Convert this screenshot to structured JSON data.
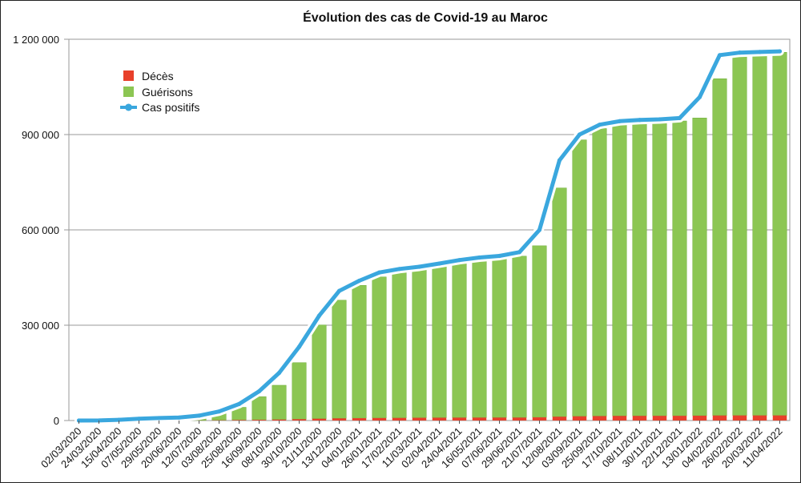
{
  "chart_data": {
    "type": "bar",
    "title": "Évolution des cas de Covid-19 au Maroc",
    "xlabel": "",
    "ylabel": "",
    "ylim": [
      0,
      1200000
    ],
    "grid": true,
    "legend_position": "top-left",
    "y_ticks": [
      0,
      300000,
      600000,
      900000,
      1200000
    ],
    "y_tick_labels": [
      "0",
      "300 000",
      "600 000",
      "900 000",
      "1 200 000"
    ],
    "categories": [
      "02/03/2020",
      "24/03/2020",
      "15/04/2020",
      "07/05/2020",
      "29/05/2020",
      "20/06/2020",
      "12/07/2020",
      "03/08/2020",
      "25/08/2020",
      "16/09/2020",
      "08/10/2020",
      "30/10/2020",
      "21/11/2020",
      "13/12/2020",
      "04/01/2021",
      "26/01/2021",
      "17/02/2021",
      "11/03/2021",
      "02/04/2021",
      "24/04/2021",
      "16/05/2021",
      "07/06/2021",
      "29/06/2021",
      "21/07/2021",
      "12/08/2021",
      "03/09/2021",
      "25/09/2021",
      "17/10/2021",
      "08/11/2021",
      "30/11/2021",
      "22/12/2021",
      "13/01/2022",
      "04/02/2022",
      "26/02/2022",
      "20/03/2022",
      "11/04/2022"
    ],
    "series": [
      {
        "name": "Décès",
        "kind": "bar",
        "color": "#e8402a",
        "values": [
          0,
          10,
          150,
          190,
          200,
          220,
          230,
          830,
          1600,
          2200,
          3000,
          4200,
          5700,
          6800,
          7400,
          7900,
          8200,
          8700,
          8900,
          9100,
          9200,
          9300,
          9300,
          10000,
          12000,
          13300,
          14000,
          14500,
          14600,
          14700,
          14800,
          15200,
          15800,
          16000,
          16000,
          16000
        ]
      },
      {
        "name": "Guérisons",
        "kind": "bar",
        "color": "#8cc653",
        "values": [
          0,
          15,
          450,
          2600,
          5000,
          7000,
          11000,
          22000,
          40000,
          73000,
          108000,
          178000,
          295000,
          372000,
          418000,
          444000,
          458000,
          468000,
          476000,
          487000,
          497000,
          502000,
          508000,
          540000,
          720000,
          870000,
          905000,
          920000,
          923000,
          925000,
          928000,
          937000,
          1060000,
          1140000,
          1142000,
          1143000
        ]
      },
      {
        "name": "Cas positifs",
        "kind": "line",
        "color": "#3aa7de",
        "values": [
          2,
          170,
          2300,
          5500,
          7700,
          9300,
          15500,
          28500,
          52000,
          92000,
          150000,
          232000,
          330000,
          408000,
          440000,
          466000,
          477000,
          484000,
          494000,
          505000,
          513000,
          518000,
          530000,
          600000,
          819000,
          900000,
          931000,
          942000,
          946000,
          948000,
          952000,
          1018000,
          1150000,
          1158000,
          1160000,
          1162000
        ]
      }
    ]
  }
}
